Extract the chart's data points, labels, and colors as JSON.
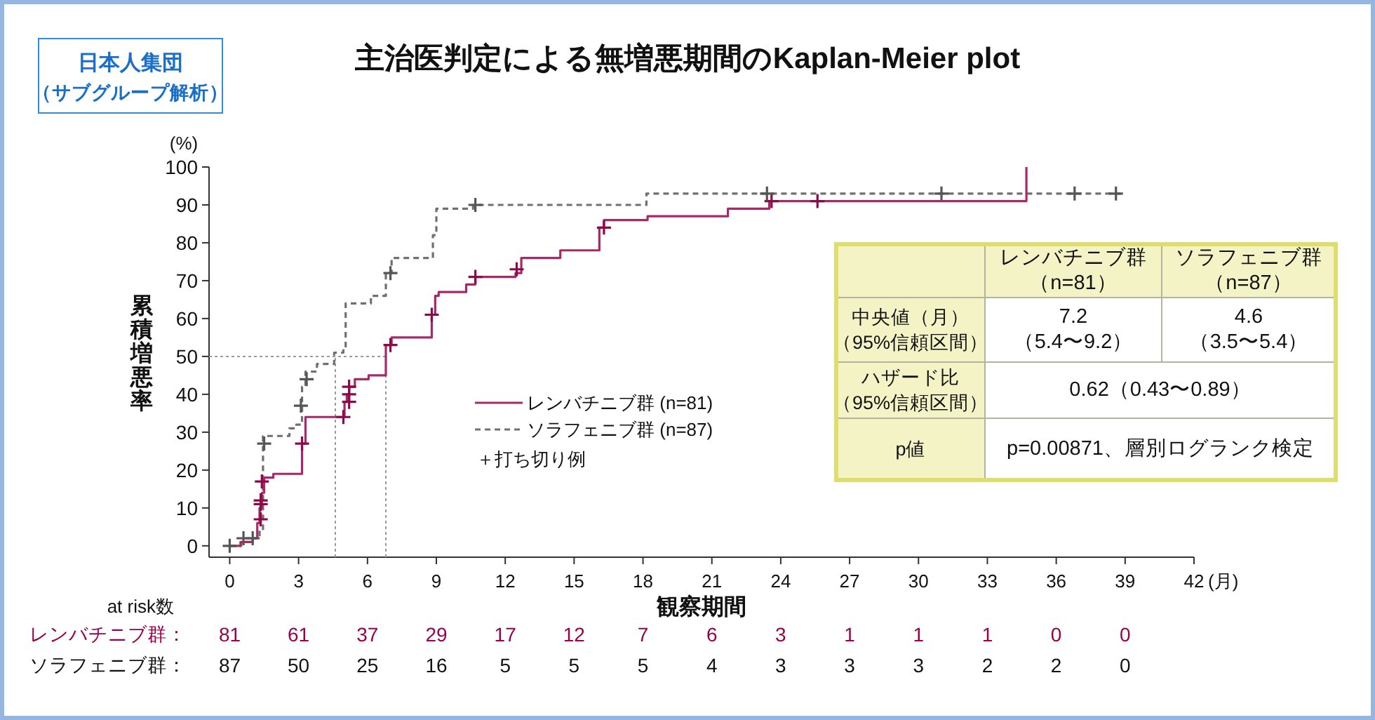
{
  "chart_data": {
    "type": "step",
    "title": "主治医判定による無増悪期間のKaplan-Meier plot",
    "xlabel": "観察期間",
    "ylabel": "累積増悪率",
    "xlim": [
      -0.9,
      42
    ],
    "xticks": [
      0,
      3,
      6,
      9,
      12,
      15,
      18,
      21,
      24,
      27,
      30,
      33,
      36,
      39,
      42
    ],
    "ylim": [
      -3,
      100
    ],
    "yticks": [
      0,
      10,
      20,
      30,
      40,
      50,
      60,
      70,
      80,
      90,
      100
    ],
    "legend": "bottom",
    "series": [
      {
        "name": "レンバチニブ群 (n=81)",
        "color": "#a8286a",
        "line_style": "solid",
        "x": [
          0,
          0.47,
          1.0,
          1.2,
          1.3,
          1.4,
          1.5,
          1.9,
          3.15,
          3.3,
          5.0,
          5.1,
          5.2,
          5.45,
          6.05,
          6.8,
          7.05,
          8.8,
          8.95,
          9.1,
          10.3,
          10.7,
          12.45,
          12.7,
          14.4,
          16.1,
          16.3,
          18.2,
          21.7,
          23.5,
          34.7
        ],
        "values": [
          0,
          1,
          2,
          6,
          10,
          14,
          18,
          19,
          27,
          34,
          38,
          40,
          42,
          44,
          45,
          53,
          55,
          61,
          66,
          67,
          69,
          71,
          72,
          76,
          78,
          84,
          86,
          87,
          89,
          91,
          100
        ]
      },
      {
        "name": "ソラフェニブ群 (n=87)",
        "color": "#707070",
        "line_style": "dashed",
        "x": [
          0,
          0.5,
          1.0,
          1.3,
          1.45,
          2.6,
          2.9,
          3.15,
          3.3,
          3.8,
          4.55,
          4.95,
          5.05,
          6.15,
          6.8,
          7.05,
          8.85,
          9.0,
          10.6,
          18.15,
          38.8
        ],
        "values": [
          0,
          1,
          2,
          4,
          29,
          31,
          32,
          42,
          46,
          48,
          51,
          52,
          64,
          66,
          72,
          76,
          82,
          89,
          90,
          93,
          93
        ]
      },
      {
        "type": "scatter",
        "marker": "cross",
        "color": "#8a0a4a",
        "x": [
          1.35,
          1.35,
          1.35,
          1.4,
          3.15,
          4.95,
          5.2,
          5.2,
          5.2,
          7.0,
          8.8,
          10.7,
          12.5,
          16.3,
          23.6,
          25.6
        ],
        "values": [
          7,
          11,
          12,
          17,
          27,
          34,
          38,
          40,
          42,
          53,
          61,
          71,
          73,
          84,
          91,
          91
        ]
      },
      {
        "type": "scatter",
        "marker": "cross",
        "color": "#555555",
        "x": [
          0,
          0.6,
          1.0,
          1.5,
          3.1,
          3.35,
          7.0,
          10.7,
          23.4,
          31.0,
          36.8,
          38.6
        ],
        "values": [
          0,
          2,
          2,
          27,
          37,
          44,
          72,
          90,
          93,
          93,
          93,
          93
        ]
      }
    ],
    "ref_lines": [
      {
        "axis": "y",
        "value": 50,
        "color": "#9a9a9a",
        "line_style": "dotted"
      },
      {
        "axis": "x",
        "value": 4.6,
        "color": "#9a9a9a",
        "line_style": "dotted"
      },
      {
        "axis": "x",
        "value": 6.8,
        "color": "#9a9a9a",
        "line_style": "dotted"
      }
    ],
    "annotations": [
      "日本人集団",
      "（サブグループ解析）",
      "(%)",
      "(月)",
      "＋打ち切り例",
      "レンバチニブ群",
      "（n=81）",
      "ソラフェニブ群",
      "（n=87）",
      "中央値（月）",
      "（95%信頼区間）",
      "7.2",
      "（5.4〜9.2）",
      "4.6",
      "（3.5〜5.4）",
      "ハザード比",
      "（95%信頼区間）",
      "0.62（0.43〜0.89）",
      "p値",
      "p=0.00871、層別ログランク検定",
      "at risk数",
      "レンバチニブ群：",
      "81",
      "61",
      "37",
      "29",
      "17",
      "12",
      "7",
      "6",
      "3",
      "1",
      "1",
      "1",
      "0",
      "0",
      "ソラフェニブ群：",
      "87",
      "50",
      "25",
      "16",
      "5",
      "5",
      "5",
      "4",
      "3",
      "3",
      "3",
      "2",
      "2",
      "0"
    ]
  }
}
